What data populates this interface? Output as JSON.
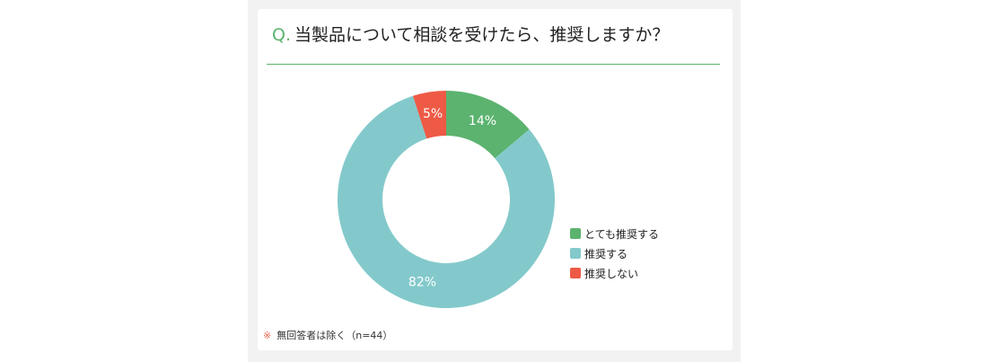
{
  "question": {
    "prefix": "Q.",
    "text": "当製品について相談を受けたら、推奨しますか？"
  },
  "chart_data": {
    "type": "pie",
    "style": "donut",
    "categories": [
      "とても推奨する",
      "推奨する",
      "推奨しない"
    ],
    "values": [
      14,
      82,
      5
    ],
    "value_labels": [
      "14%",
      "82%",
      "5%"
    ],
    "colors": [
      "#5bb36f",
      "#83c9cb",
      "#ee5a45"
    ],
    "legend_position": "right-bottom",
    "start": "12 o'clock",
    "direction": "clockwise"
  },
  "footnote": {
    "mark": "※",
    "text": "無回答者は除く（n=44）"
  }
}
